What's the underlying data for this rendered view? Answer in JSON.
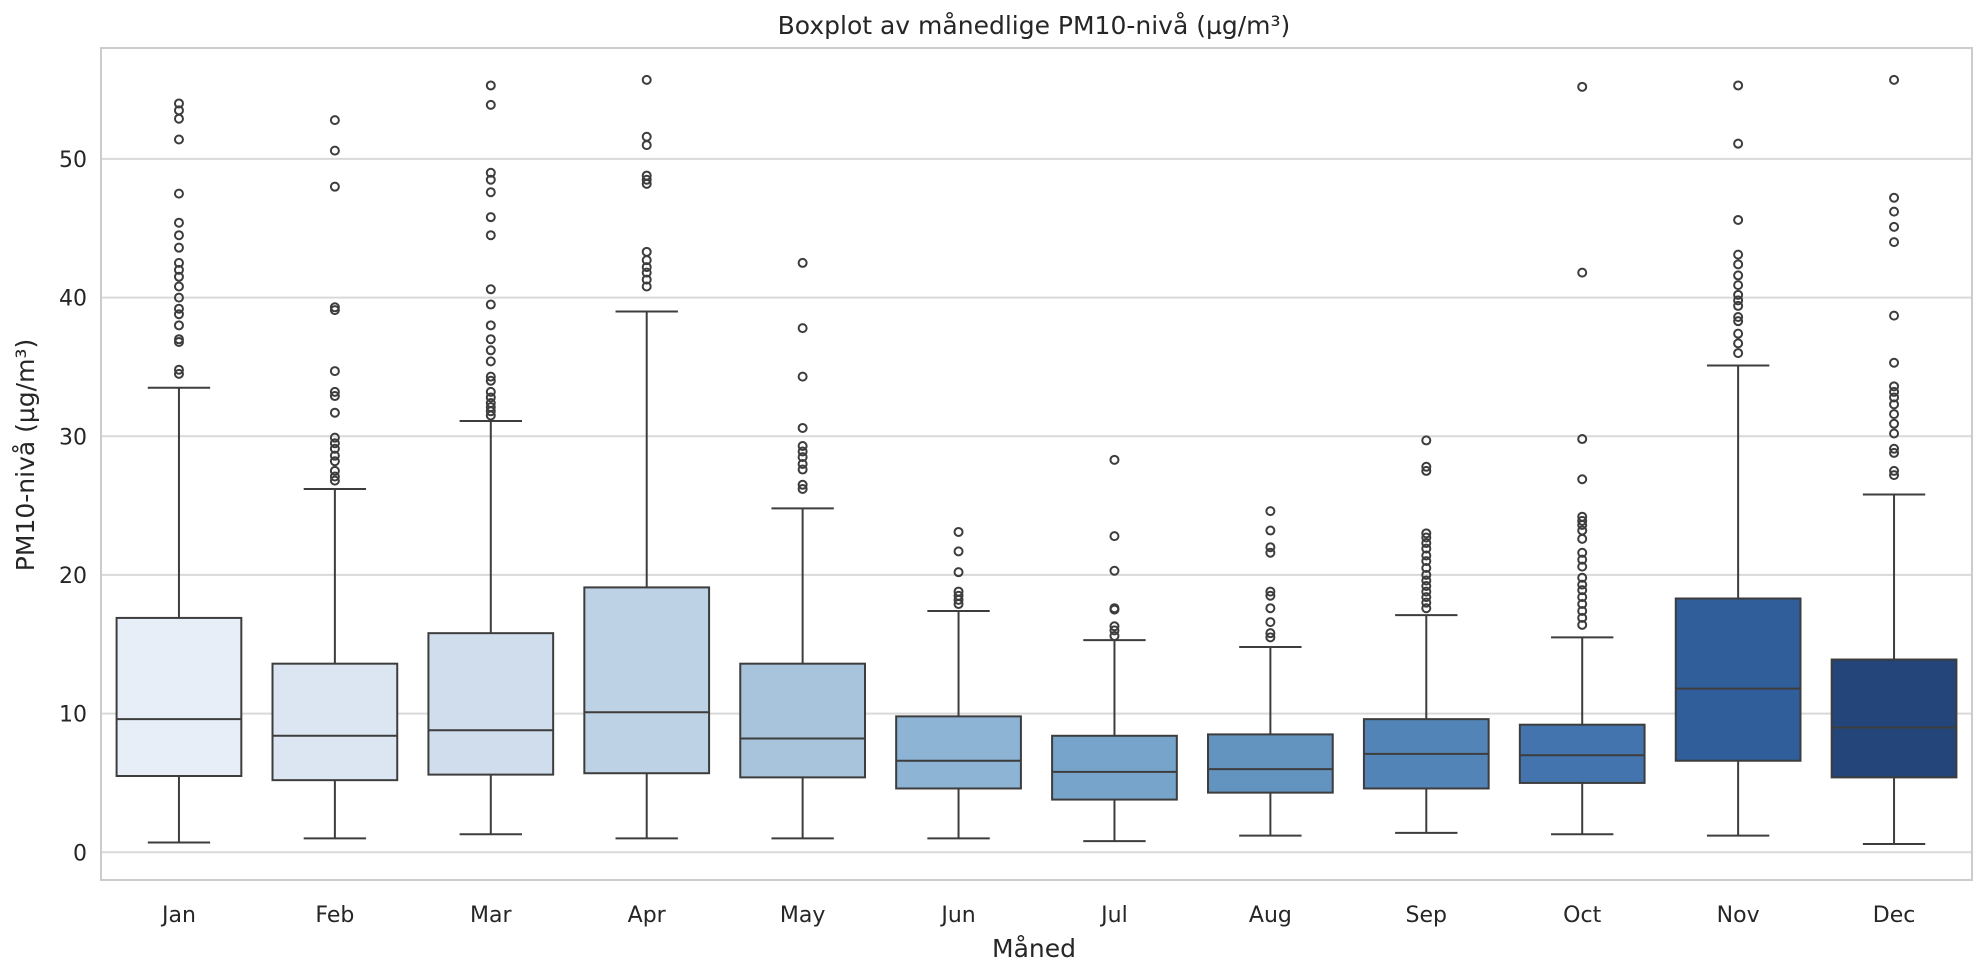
{
  "chart_data": {
    "type": "boxplot",
    "title": "Boxplot av månedlige PM10-nivå (µg/m³)",
    "xlabel": "Måned",
    "ylabel": "PM10-nivå (µg/m³)",
    "ylim": [
      -2,
      58
    ],
    "yticks": [
      0,
      10,
      20,
      30,
      40,
      50
    ],
    "grid": true,
    "categories": [
      "Jan",
      "Feb",
      "Mar",
      "Apr",
      "May",
      "Jun",
      "Jul",
      "Aug",
      "Sep",
      "Oct",
      "Nov",
      "Dec"
    ],
    "boxes": [
      {
        "month": "Jan",
        "whisker_low": 0.7,
        "q1": 5.5,
        "median": 9.6,
        "q3": 16.9,
        "whisker_high": 33.5,
        "outliers": [
          34.5,
          34.8,
          36.8,
          37.0,
          38.0,
          38.8,
          39.2,
          40.0,
          40.8,
          41.5,
          42.0,
          42.5,
          43.6,
          44.5,
          45.4,
          47.5,
          51.4,
          52.9,
          53.5,
          54.0
        ],
        "color": "#e8eef8"
      },
      {
        "month": "Feb",
        "whisker_low": 1.0,
        "q1": 5.2,
        "median": 8.4,
        "q3": 13.6,
        "whisker_high": 26.2,
        "outliers": [
          26.8,
          27.1,
          27.5,
          28.2,
          28.6,
          29.1,
          29.5,
          29.9,
          31.7,
          32.9,
          33.2,
          34.7,
          39.1,
          39.3,
          48.0,
          50.6,
          52.8
        ],
        "color": "#dce6f2"
      },
      {
        "month": "Mar",
        "whisker_low": 1.3,
        "q1": 5.6,
        "median": 8.8,
        "q3": 15.8,
        "whisker_high": 31.1,
        "outliers": [
          31.5,
          31.8,
          32.1,
          32.4,
          32.8,
          33.2,
          34.0,
          34.3,
          35.4,
          36.2,
          37.0,
          38.0,
          39.5,
          40.6,
          44.5,
          45.8,
          47.6,
          48.5,
          49.0,
          53.9,
          55.3
        ],
        "color": "#cfddec"
      },
      {
        "month": "Apr",
        "whisker_low": 1.0,
        "q1": 5.7,
        "median": 10.1,
        "q3": 19.1,
        "whisker_high": 39.0,
        "outliers": [
          40.8,
          41.3,
          41.8,
          42.2,
          42.7,
          43.3,
          48.2,
          48.5,
          48.8,
          51.0,
          51.6,
          55.7
        ],
        "color": "#bed2e5"
      },
      {
        "month": "May",
        "whisker_low": 1.0,
        "q1": 5.4,
        "median": 8.2,
        "q3": 13.6,
        "whisker_high": 24.8,
        "outliers": [
          26.2,
          26.5,
          27.6,
          28.0,
          28.5,
          28.9,
          29.3,
          30.6,
          34.3,
          37.8,
          42.5
        ],
        "color": "#a8c4dc"
      },
      {
        "month": "Jun",
        "whisker_low": 1.0,
        "q1": 4.6,
        "median": 6.6,
        "q3": 9.8,
        "whisker_high": 17.4,
        "outliers": [
          17.9,
          18.2,
          18.5,
          18.8,
          20.2,
          21.7,
          23.1
        ],
        "color": "#8db4d4"
      },
      {
        "month": "Jul",
        "whisker_low": 0.8,
        "q1": 3.8,
        "median": 5.8,
        "q3": 8.4,
        "whisker_high": 15.3,
        "outliers": [
          15.6,
          16.0,
          16.3,
          17.5,
          17.6,
          20.3,
          22.8,
          28.3
        ],
        "color": "#76a4ca"
      },
      {
        "month": "Aug",
        "whisker_low": 1.2,
        "q1": 4.3,
        "median": 6.0,
        "q3": 8.5,
        "whisker_high": 14.8,
        "outliers": [
          15.5,
          15.8,
          16.6,
          17.6,
          18.5,
          18.8,
          21.6,
          22.0,
          23.2,
          24.6
        ],
        "color": "#6393bf"
      },
      {
        "month": "Sep",
        "whisker_low": 1.4,
        "q1": 4.6,
        "median": 7.1,
        "q3": 9.6,
        "whisker_high": 17.1,
        "outliers": [
          17.6,
          18.0,
          18.4,
          18.8,
          19.2,
          19.6,
          20.0,
          20.5,
          21.0,
          21.4,
          21.9,
          22.3,
          22.7,
          23.0,
          27.5,
          27.8,
          29.7
        ],
        "color": "#5384b8"
      },
      {
        "month": "Oct",
        "whisker_low": 1.3,
        "q1": 5.0,
        "median": 7.0,
        "q3": 9.2,
        "whisker_high": 15.5,
        "outliers": [
          16.4,
          16.9,
          17.4,
          17.9,
          18.4,
          18.9,
          19.3,
          19.8,
          20.6,
          21.1,
          21.6,
          22.6,
          23.2,
          23.6,
          23.9,
          24.2,
          26.9,
          29.8,
          41.8,
          55.2
        ],
        "color": "#4374ae"
      },
      {
        "month": "Nov",
        "whisker_low": 1.2,
        "q1": 6.6,
        "median": 11.8,
        "q3": 18.3,
        "whisker_high": 35.1,
        "outliers": [
          36.0,
          36.7,
          37.4,
          38.3,
          38.6,
          39.4,
          39.8,
          40.2,
          40.9,
          41.6,
          42.4,
          43.1,
          45.6,
          51.1,
          55.3
        ],
        "color": "#2f5e9a"
      },
      {
        "month": "Dec",
        "whisker_low": 0.6,
        "q1": 5.4,
        "median": 9.0,
        "q3": 13.9,
        "whisker_high": 25.8,
        "outliers": [
          27.2,
          27.5,
          28.8,
          29.1,
          30.2,
          30.9,
          31.6,
          32.3,
          32.8,
          33.2,
          33.6,
          35.3,
          38.7,
          44.0,
          45.1,
          46.2,
          47.2,
          55.7
        ],
        "color": "#24457a"
      }
    ]
  }
}
